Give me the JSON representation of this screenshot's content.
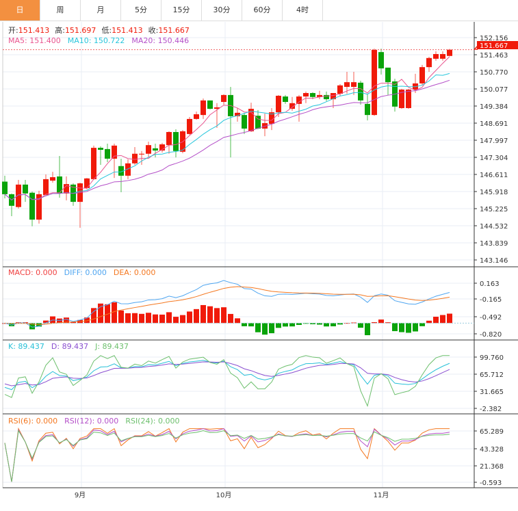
{
  "tabs": [
    {
      "label": "日",
      "active": true
    },
    {
      "label": "周"
    },
    {
      "label": "月"
    },
    {
      "label": "5分"
    },
    {
      "label": "15分"
    },
    {
      "label": "30分"
    },
    {
      "label": "60分"
    },
    {
      "label": "4时"
    }
  ],
  "legend": {
    "ohlc": [
      {
        "label": "开:",
        "value": "151.413"
      },
      {
        "label": "高:",
        "value": "151.697"
      },
      {
        "label": "低:",
        "value": "151.413"
      },
      {
        "label": "收:",
        "value": "151.667"
      }
    ],
    "ma": [
      {
        "label": "MA5: 151.400",
        "color": "#e9548e"
      },
      {
        "label": "MA10: 150.722",
        "color": "#27c6dc"
      },
      {
        "label": "MA20: 150.446",
        "color": "#b44fc8"
      }
    ],
    "macd": [
      {
        "label": "MACD: 0.000",
        "color": "#f04040"
      },
      {
        "label": "DIFF: 0.000",
        "color": "#4ea5f0"
      },
      {
        "label": "DEA: 0.000",
        "color": "#f4771f"
      }
    ],
    "kdj": [
      {
        "label": "K: 89.437",
        "color": "#27c0d8"
      },
      {
        "label": "D: 89.437",
        "color": "#8a4fd0"
      },
      {
        "label": "J: 89.437",
        "color": "#6cbf6c"
      }
    ],
    "rsi": [
      {
        "label": "RSI(6): 0.000",
        "color": "#f4771f"
      },
      {
        "label": "RSI(12): 0.000",
        "color": "#b44fc8"
      },
      {
        "label": "RSI(24): 0.000",
        "color": "#6cbf6c"
      }
    ]
  },
  "colors": {
    "up": "#f01a0a",
    "down": "#0aa30a",
    "ma5": "#e9548e",
    "ma10": "#27c6dc",
    "ma20": "#b44fc8",
    "diff": "#4ea5f0",
    "dea": "#f4771f",
    "k": "#27c0d8",
    "d": "#8a4fd0",
    "j": "#6cbf6c",
    "rsi6": "#f4771f",
    "rsi12": "#b44fc8",
    "rsi24": "#6cbf6c"
  },
  "chart_data": {
    "type": "candlestick",
    "price_axis": {
      "ticks": [
        "152.156",
        "151.463",
        "150.770",
        "150.077",
        "149.384",
        "148.691",
        "147.997",
        "147.304",
        "146.611",
        "145.918",
        "145.225",
        "144.532",
        "143.839",
        "143.146"
      ],
      "range": [
        143.146,
        152.156
      ]
    },
    "last_price": "151.667",
    "macd_axis": {
      "ticks": [
        "0.163",
        "-0.165",
        "-0.492",
        "-0.820"
      ]
    },
    "kdj_axis": {
      "ticks": [
        "99.760",
        "65.712",
        "31.665",
        "-2.382"
      ],
      "range": [
        -2.382,
        99.76
      ]
    },
    "rsi_axis": {
      "ticks": [
        "65.289",
        "43.328",
        "21.368",
        "-0.593"
      ],
      "range": [
        -0.593,
        65.289
      ]
    },
    "x_labels": [
      {
        "label": "9月",
        "index": 11
      },
      {
        "label": "10月",
        "index": 32
      },
      {
        "label": "11月",
        "index": 55
      }
    ],
    "ohlc": [
      [
        146.32,
        146.56,
        145.64,
        145.81
      ],
      [
        145.81,
        145.84,
        144.92,
        145.34
      ],
      [
        145.29,
        146.39,
        145.23,
        146.2
      ],
      [
        146.2,
        146.39,
        145.5,
        145.84
      ],
      [
        145.87,
        145.92,
        144.51,
        144.78
      ],
      [
        144.78,
        145.95,
        144.62,
        145.81
      ],
      [
        145.78,
        146.61,
        145.73,
        146.42
      ],
      [
        146.36,
        146.72,
        146.28,
        146.5
      ],
      [
        146.53,
        147.36,
        145.67,
        145.84
      ],
      [
        145.84,
        146.53,
        145.56,
        146.22
      ],
      [
        146.2,
        146.25,
        145.34,
        145.5
      ],
      [
        145.5,
        146.28,
        144.45,
        146.25
      ],
      [
        146.06,
        146.47,
        146.0,
        146.45
      ],
      [
        146.42,
        147.78,
        146.39,
        147.69
      ],
      [
        147.69,
        147.75,
        147.0,
        147.61
      ],
      [
        147.64,
        147.86,
        147.11,
        147.25
      ],
      [
        147.25,
        147.86,
        146.47,
        147.78
      ],
      [
        146.95,
        147.25,
        145.89,
        146.56
      ],
      [
        146.56,
        147.22,
        146.42,
        147.06
      ],
      [
        147.06,
        147.72,
        147.0,
        147.45
      ],
      [
        147.42,
        147.56,
        147.0,
        147.45
      ],
      [
        147.45,
        147.94,
        147.3,
        147.8
      ],
      [
        147.67,
        147.86,
        147.3,
        147.58
      ],
      [
        147.58,
        147.89,
        147.5,
        147.83
      ],
      [
        147.8,
        148.36,
        147.45,
        148.33
      ],
      [
        148.33,
        148.44,
        147.3,
        147.56
      ],
      [
        147.53,
        148.41,
        147.47,
        148.36
      ],
      [
        148.25,
        148.94,
        148.22,
        148.86
      ],
      [
        148.86,
        149.16,
        148.83,
        149.05
      ],
      [
        149.02,
        149.69,
        148.86,
        149.61
      ],
      [
        149.61,
        149.61,
        149.25,
        149.27
      ],
      [
        149.27,
        149.5,
        148.5,
        149.33
      ],
      [
        149.55,
        149.86,
        149.44,
        149.83
      ],
      [
        149.83,
        150.16,
        147.3,
        148.97
      ],
      [
        148.97,
        149.3,
        148.75,
        149.11
      ],
      [
        149.02,
        149.11,
        148.25,
        148.47
      ],
      [
        148.36,
        149.52,
        148.33,
        149.27
      ],
      [
        148.99,
        149.22,
        148.44,
        148.47
      ],
      [
        148.47,
        149.08,
        148.16,
        148.69
      ],
      [
        148.66,
        149.3,
        148.41,
        149.13
      ],
      [
        149.13,
        149.83,
        148.94,
        149.8
      ],
      [
        149.77,
        149.83,
        149.47,
        149.55
      ],
      [
        149.27,
        149.75,
        149.19,
        149.5
      ],
      [
        149.47,
        149.83,
        148.75,
        149.77
      ],
      [
        149.77,
        149.97,
        149.5,
        149.91
      ],
      [
        149.91,
        149.94,
        149.66,
        149.75
      ],
      [
        149.75,
        150.0,
        149.66,
        149.83
      ],
      [
        149.83,
        149.97,
        149.58,
        149.66
      ],
      [
        149.66,
        149.91,
        149.3,
        149.91
      ],
      [
        149.88,
        150.27,
        149.8,
        150.22
      ],
      [
        150.16,
        150.77,
        149.88,
        150.35
      ],
      [
        150.16,
        150.77,
        149.83,
        150.35
      ],
      [
        150.33,
        150.41,
        149.44,
        149.61
      ],
      [
        149.47,
        149.86,
        148.8,
        149.02
      ],
      [
        149.02,
        151.71,
        148.99,
        151.66
      ],
      [
        151.57,
        151.71,
        150.66,
        150.91
      ],
      [
        150.94,
        150.94,
        149.83,
        150.35
      ],
      [
        150.38,
        150.49,
        149.16,
        149.36
      ],
      [
        149.3,
        150.08,
        149.27,
        150.05
      ],
      [
        149.3,
        150.08,
        149.27,
        150.05
      ],
      [
        150.05,
        150.69,
        149.91,
        150.3
      ],
      [
        150.3,
        151.05,
        150.22,
        150.96
      ],
      [
        150.96,
        151.38,
        150.77,
        151.33
      ],
      [
        151.3,
        151.6,
        151.22,
        151.49
      ],
      [
        151.3,
        151.6,
        151.22,
        151.49
      ],
      [
        151.413,
        151.697,
        151.413,
        151.667
      ]
    ]
  }
}
